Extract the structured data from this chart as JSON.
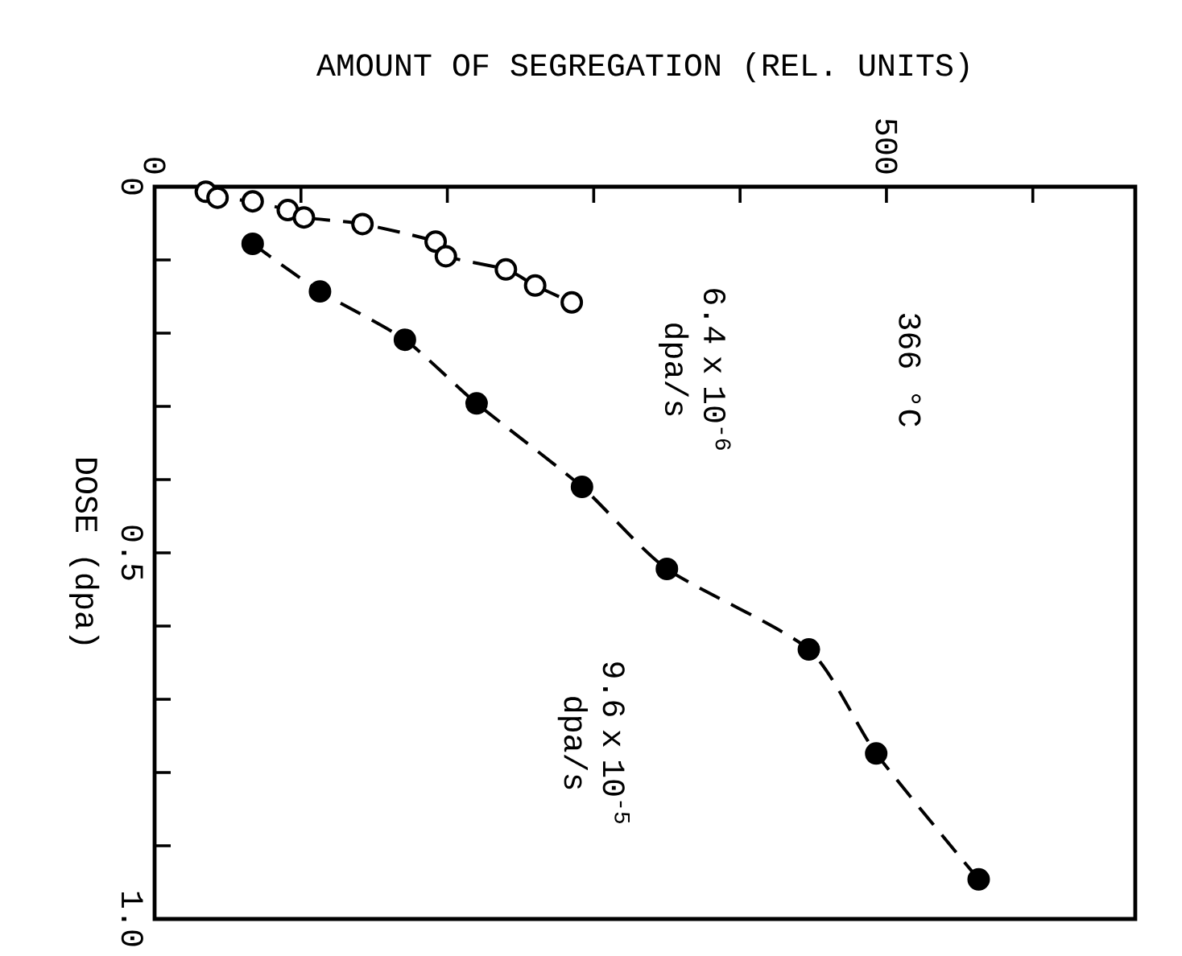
{
  "chart_data": {
    "type": "line",
    "xlabel": "AMOUNT OF SEGREGATION (REL. UNITS)",
    "ylabel": "DOSE (dpa)",
    "annotations": [
      "366 °C"
    ],
    "xlim": [
      0,
      670
    ],
    "ylim": [
      1.0,
      0
    ],
    "xticks": [
      0,
      {
        "value": 100,
        "label": null
      },
      {
        "value": 200,
        "label": null
      },
      {
        "value": 300,
        "label": null
      },
      {
        "value": 400,
        "label": null
      },
      500,
      {
        "value": 600,
        "label": null
      }
    ],
    "yticks": [
      0,
      {
        "value": 0.1,
        "label": null
      },
      {
        "value": 0.2,
        "label": null
      },
      {
        "value": 0.3,
        "label": null
      },
      {
        "value": 0.4,
        "label": null
      },
      0.5,
      {
        "value": 0.6,
        "label": null
      },
      {
        "value": 0.7,
        "label": null
      },
      {
        "value": 0.8,
        "label": null
      },
      {
        "value": 0.9,
        "label": null
      },
      {
        "value": 1.0,
        "label": "1.0"
      }
    ],
    "marker": "circle",
    "line_style": "dashed",
    "grid": false,
    "series": [
      {
        "name": "6.4 x 10$^{-6}$ dpa/s",
        "color": "#000000",
        "x": [
          35,
          43,
          67,
          91,
          102,
          142,
          192,
          199,
          240,
          260,
          285
        ],
        "values": [
          0.007,
          0.015,
          0.02,
          0.032,
          0.042,
          0.051,
          0.075,
          0.095,
          0.113,
          0.135,
          0.158
        ]
      },
      {
        "name": "9.6 x 10$^{-5}$ dpa/s",
        "color": "#000000",
        "x": [
          67,
          113,
          171,
          220,
          292,
          350,
          447,
          493,
          563
        ],
        "values": [
          0.078,
          0.143,
          0.209,
          0.296,
          0.41,
          0.522,
          0.632,
          0.774,
          0.946
        ]
      }
    ]
  }
}
